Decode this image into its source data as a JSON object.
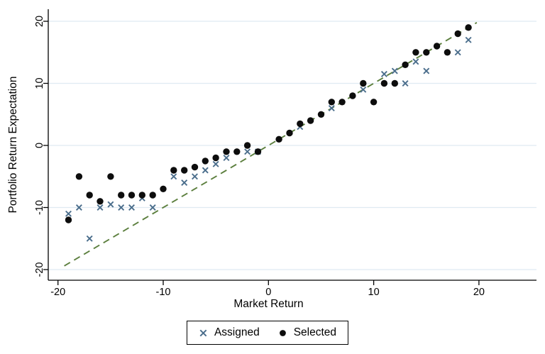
{
  "chart_data": {
    "type": "scatter",
    "title": "",
    "xlabel": "Market Return",
    "ylabel": "Portfolio Return Expectation",
    "xlim": [
      -20,
      20
    ],
    "ylim": [
      -20,
      20
    ],
    "x_ticks": [
      -20,
      -10,
      0,
      10,
      20
    ],
    "y_ticks": [
      20,
      10,
      0,
      -10,
      -20
    ],
    "grid": "horizontal-only",
    "gridline_color": "#dfeaf2",
    "axis_color": "#000000",
    "background_color": "#ffffff",
    "legend": {
      "position": "bottom-center",
      "boxed": true,
      "entries": [
        "Assigned",
        "Selected"
      ]
    },
    "series": [
      {
        "name": "Assigned",
        "marker": "x",
        "color": "#4b6e8c",
        "points": [
          [
            -19,
            -11
          ],
          [
            -18,
            -10
          ],
          [
            -17,
            -15
          ],
          [
            -16,
            -10
          ],
          [
            -15,
            -9.5
          ],
          [
            -14,
            -10
          ],
          [
            -13,
            -10
          ],
          [
            -12,
            -8.5
          ],
          [
            -11,
            -10
          ],
          [
            -9,
            -5
          ],
          [
            -8,
            -6
          ],
          [
            -7,
            -5
          ],
          [
            -6,
            -4
          ],
          [
            -5,
            -3
          ],
          [
            -4,
            -2
          ],
          [
            -2,
            -1
          ],
          [
            -1,
            -1
          ],
          [
            3,
            3
          ],
          [
            6,
            6
          ],
          [
            9,
            9
          ],
          [
            11,
            11.5
          ],
          [
            12,
            12
          ],
          [
            13,
            10
          ],
          [
            14,
            13.5
          ],
          [
            15,
            12
          ],
          [
            18,
            15
          ],
          [
            19,
            17
          ]
        ]
      },
      {
        "name": "Selected",
        "marker": "circle",
        "color": "#0d0d0d",
        "points": [
          [
            -19,
            -12
          ],
          [
            -18,
            -5
          ],
          [
            -17,
            -8
          ],
          [
            -16,
            -9
          ],
          [
            -15,
            -5
          ],
          [
            -14,
            -8
          ],
          [
            -13,
            -8
          ],
          [
            -12,
            -8
          ],
          [
            -11,
            -8
          ],
          [
            -10,
            -7
          ],
          [
            -9,
            -4
          ],
          [
            -8,
            -4
          ],
          [
            -7,
            -3.5
          ],
          [
            -6,
            -2.5
          ],
          [
            -5,
            -2
          ],
          [
            -4,
            -1
          ],
          [
            -3,
            -1
          ],
          [
            -2,
            0
          ],
          [
            -1,
            -1
          ],
          [
            1,
            1
          ],
          [
            2,
            2
          ],
          [
            3,
            3.5
          ],
          [
            4,
            4
          ],
          [
            5,
            5
          ],
          [
            6,
            7
          ],
          [
            7,
            7
          ],
          [
            8,
            8
          ],
          [
            9,
            10
          ],
          [
            10,
            7
          ],
          [
            11,
            10
          ],
          [
            12,
            10
          ],
          [
            13,
            13
          ],
          [
            14,
            15
          ],
          [
            15,
            15
          ],
          [
            16,
            16
          ],
          [
            17,
            15
          ],
          [
            18,
            18
          ],
          [
            19,
            19
          ]
        ]
      }
    ],
    "reference_line": {
      "name": "45-degree line",
      "style": "dashed",
      "color": "#5c7f3e",
      "from": [
        -19.4,
        -19.4
      ],
      "to": [
        19.8,
        19.8
      ]
    }
  }
}
